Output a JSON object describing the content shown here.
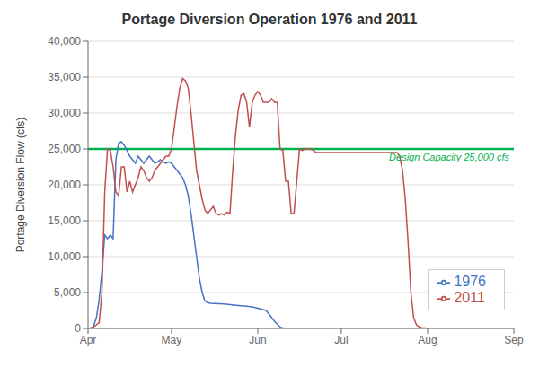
{
  "chart_data": {
    "type": "line",
    "title": "Portage Diversion Operation 1976 and 2011",
    "ylabel": "Portage Diversion Flow (cfs)",
    "xlim": [
      91,
      244
    ],
    "xticks": [
      {
        "value": 91,
        "label": "Apr"
      },
      {
        "value": 121,
        "label": "May"
      },
      {
        "value": 152,
        "label": "Jun"
      },
      {
        "value": 182,
        "label": "Jul"
      },
      {
        "value": 213,
        "label": "Aug"
      },
      {
        "value": 244,
        "label": "Sep"
      }
    ],
    "ylim": [
      0,
      40000
    ],
    "yticks": [
      0,
      {
        "value": 5000,
        "label": "5,000"
      },
      {
        "value": 10000,
        "label": "10,000"
      },
      {
        "value": 15000,
        "label": "15,000"
      },
      {
        "value": 20000,
        "label": "20,000"
      },
      {
        "value": 25000,
        "label": "25,000"
      },
      {
        "value": 30000,
        "label": "30,000"
      },
      {
        "value": 35000,
        "label": "35,000"
      },
      {
        "value": 40000,
        "label": "40,000"
      }
    ],
    "grid": "y",
    "legend": "lower right",
    "annotations": [
      {
        "text": "Design Capacity 25,000 cfs",
        "y": 25000,
        "color": "#00b050"
      }
    ],
    "series": [
      {
        "name": "1976",
        "color": "#4472c4",
        "x": [
          91,
          92,
          93,
          94,
          95,
          96,
          97,
          98,
          99,
          100,
          101,
          102,
          103,
          104,
          105,
          106,
          107,
          108,
          109,
          110,
          111,
          112,
          113,
          114,
          115,
          116,
          117,
          118,
          119,
          120,
          121,
          122,
          123,
          124,
          125,
          126,
          127,
          128,
          129,
          130,
          131,
          132,
          133,
          134,
          135,
          140,
          145,
          148,
          150,
          152,
          155,
          158,
          160,
          161,
          163,
          244
        ],
        "values": [
          0,
          50,
          300,
          1500,
          4000,
          8000,
          13000,
          12500,
          13000,
          12500,
          23500,
          25800,
          26000,
          25500,
          24800,
          24000,
          23500,
          23000,
          24000,
          23500,
          23000,
          23500,
          24000,
          23500,
          23000,
          23200,
          23500,
          23200,
          23000,
          23200,
          23000,
          22500,
          22000,
          21500,
          21000,
          20000,
          18500,
          16000,
          13000,
          10000,
          7000,
          5000,
          3800,
          3600,
          3500,
          3400,
          3200,
          3100,
          3000,
          2800,
          2500,
          1000,
          200,
          50,
          0,
          0
        ]
      },
      {
        "name": "2011",
        "color": "#c0504d",
        "x": [
          91,
          92,
          93,
          94,
          95,
          96,
          97,
          98,
          99,
          100,
          101,
          102,
          103,
          104,
          105,
          106,
          107,
          108,
          109,
          110,
          111,
          112,
          113,
          114,
          115,
          116,
          117,
          118,
          119,
          120,
          121,
          122,
          123,
          124,
          125,
          126,
          127,
          128,
          129,
          130,
          131,
          132,
          133,
          134,
          135,
          136,
          137,
          138,
          139,
          140,
          141,
          142,
          143,
          144,
          145,
          146,
          147,
          148,
          149,
          150,
          151,
          152,
          153,
          154,
          155,
          156,
          157,
          158,
          159,
          160,
          161,
          162,
          163,
          164,
          165,
          166,
          167,
          168,
          169,
          170,
          171,
          172,
          173,
          174,
          175,
          176,
          177,
          178,
          179,
          180,
          181,
          182,
          183,
          184,
          185,
          186,
          187,
          188,
          189,
          190,
          191,
          192,
          193,
          194,
          195,
          196,
          197,
          198,
          199,
          200,
          201,
          202,
          203,
          204,
          205,
          206,
          207,
          208,
          209,
          210,
          211,
          212,
          213,
          244
        ],
        "values": [
          0,
          50,
          200,
          500,
          800,
          5000,
          19000,
          25000,
          24800,
          22500,
          19000,
          18500,
          22500,
          22500,
          19000,
          20500,
          19000,
          20000,
          21000,
          22500,
          22000,
          21000,
          20500,
          21000,
          22000,
          22500,
          23000,
          23500,
          24000,
          24000,
          25000,
          28000,
          31000,
          33500,
          34800,
          34500,
          33500,
          30000,
          26000,
          22000,
          20000,
          18000,
          16500,
          16000,
          16500,
          17000,
          16000,
          15800,
          16000,
          15800,
          16200,
          16000,
          22000,
          27000,
          30500,
          32500,
          32700,
          31500,
          28000,
          31500,
          32500,
          33000,
          32500,
          31500,
          31500,
          31500,
          32000,
          31500,
          31500,
          25000,
          24800,
          20500,
          20500,
          16000,
          16000,
          20500,
          25000,
          24800,
          25000,
          25000,
          25000,
          24800,
          24500,
          24500,
          24500,
          24500,
          24500,
          24500,
          24500,
          24500,
          24500,
          24500,
          24500,
          24500,
          24500,
          24500,
          24500,
          24500,
          24500,
          24500,
          24500,
          24500,
          24500,
          24500,
          24500,
          24500,
          24500,
          24500,
          24500,
          24500,
          24500,
          24500,
          24000,
          22000,
          18000,
          12000,
          5000,
          1500,
          500,
          200,
          100,
          50,
          0,
          0
        ]
      }
    ]
  }
}
